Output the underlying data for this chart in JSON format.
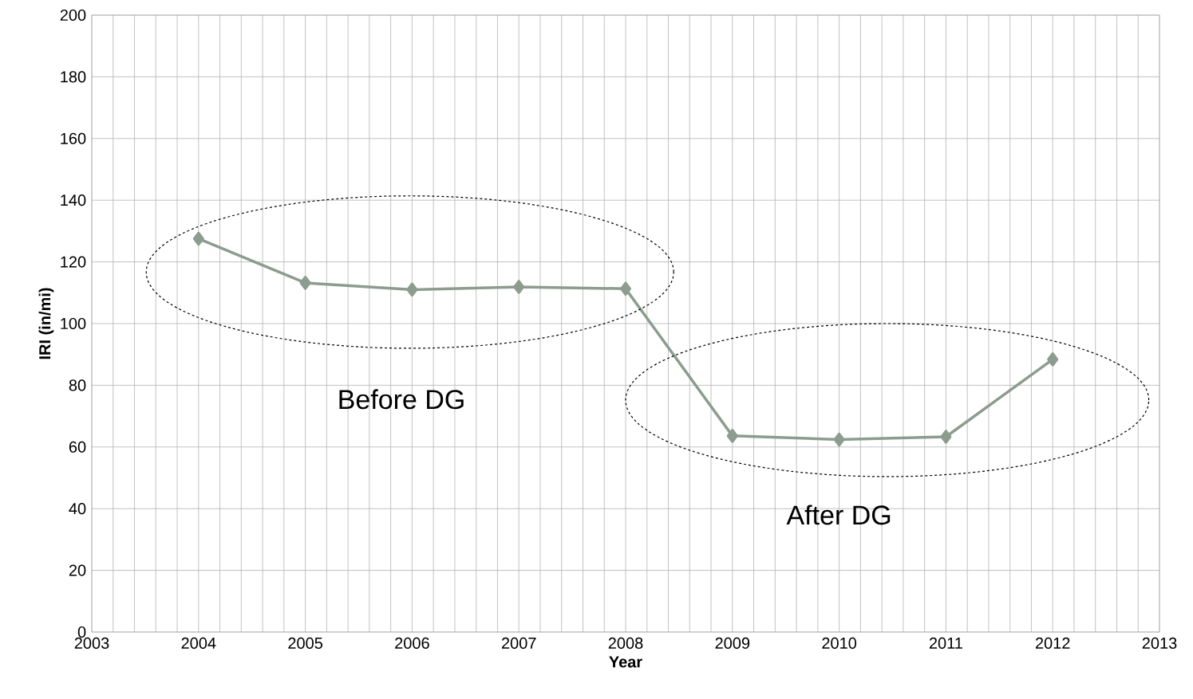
{
  "chart_data": {
    "type": "line",
    "xlabel": "Year",
    "ylabel": "IRI (in/mi)",
    "x": [
      2004,
      2005,
      2006,
      2007,
      2008,
      2009,
      2010,
      2011,
      2012
    ],
    "series": [
      {
        "color": "#8c9c8e",
        "values": [
          127.5,
          113.2,
          111.0,
          111.9,
          111.3,
          63.6,
          62.4,
          63.3,
          88.4
        ]
      }
    ],
    "xlim": [
      2003,
      2013
    ],
    "xticks": [
      2003,
      2004,
      2005,
      2006,
      2007,
      2008,
      2009,
      2010,
      2011,
      2012,
      2013
    ],
    "ylim": [
      0,
      200
    ],
    "yticks": [
      0,
      20,
      40,
      60,
      80,
      100,
      120,
      140,
      160,
      180,
      200
    ],
    "grid": true,
    "marker": "diamond",
    "line_style": "solid",
    "annotations": [
      "Before DG",
      "After DG"
    ]
  }
}
